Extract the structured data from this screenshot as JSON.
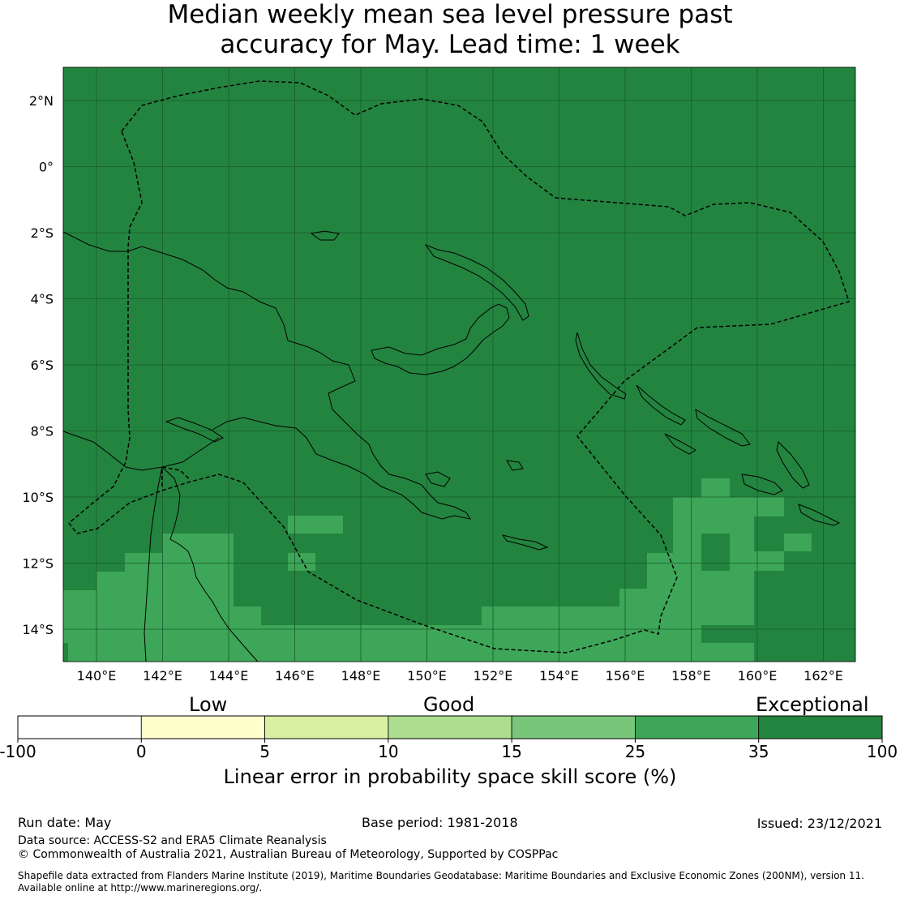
{
  "title": {
    "line1": "Median weekly mean sea level pressure past",
    "line2": "accuracy for May. Lead time: 1 week"
  },
  "map": {
    "lat_labels": [
      "2°N",
      "0°",
      "2°S",
      "4°S",
      "6°S",
      "8°S",
      "10°S",
      "12°S",
      "14°S"
    ],
    "lon_labels": [
      "140°E",
      "142°E",
      "144°E",
      "146°E",
      "148°E",
      "150°E",
      "152°E",
      "154°E",
      "156°E",
      "158°E",
      "160°E",
      "162°E"
    ],
    "colors": {
      "exceptional": "#23843f",
      "band_25_35": "#3da658",
      "gridline": "#1a5a2c",
      "coastline": "#000000",
      "eez_boundary": "#000000"
    }
  },
  "colorbar": {
    "categories": {
      "low": "Low",
      "good": "Good",
      "exceptional": "Exceptional"
    },
    "ticks": [
      "-100",
      "0",
      "5",
      "10",
      "15",
      "25",
      "35",
      "100"
    ],
    "colors": [
      "#ffffff",
      "#ffffcc",
      "#d9f0a3",
      "#addd8e",
      "#78c679",
      "#3da658",
      "#23843f"
    ],
    "label": "Linear error in probability space skill score (%)"
  },
  "footer": {
    "run_date": "Run date: May",
    "base_period": "Base period: 1981-2018",
    "issued": "Issued: 23/12/2021",
    "data_source": "Data source: ACCESS-S2 and ERA5 Climate Reanalysis",
    "copyright": "© Commonwealth of Australia 2021, Australian Bureau of Meteorology, Supported by COSPPac",
    "shapefile_line1": "Shapefile data extracted from Flanders Marine Institute (2019), Maritime Boundaries Geodatabase: Maritime Boundaries and Exclusive Economic Zones (200NM), version 11.",
    "shapefile_line2": "Available online at http://www.marineregions.org/."
  }
}
